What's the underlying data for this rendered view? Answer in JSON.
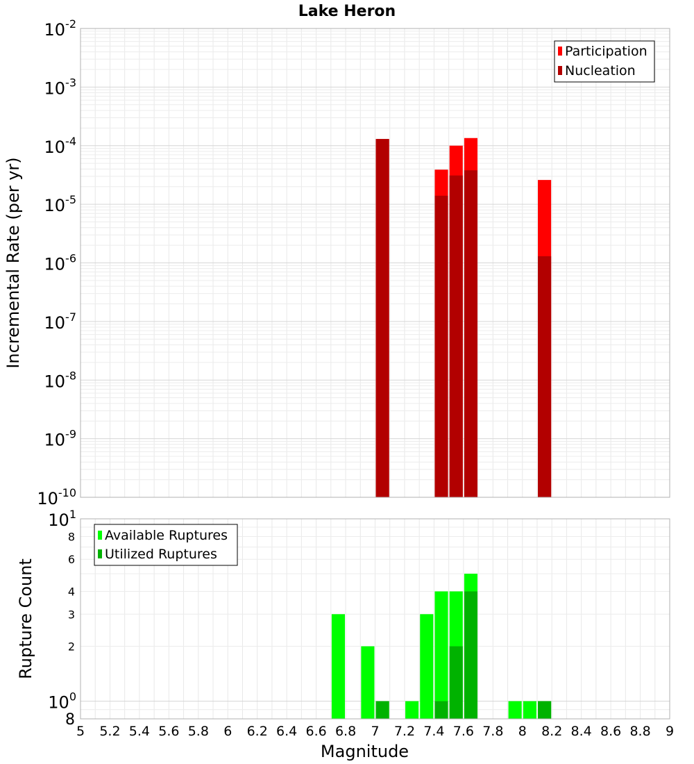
{
  "chart_data": [
    {
      "type": "bar",
      "title": "Lake Heron",
      "xlabel": "",
      "ylabel": "Incremental Rate (per yr)",
      "yscale": "log",
      "xlim": [
        5,
        9
      ],
      "ylim": [
        1e-10,
        0.01
      ],
      "yticks": [
        {
          "base": "10",
          "exp": "-10"
        },
        {
          "base": "10",
          "exp": "-9"
        },
        {
          "base": "10",
          "exp": "-8"
        },
        {
          "base": "10",
          "exp": "-7"
        },
        {
          "base": "10",
          "exp": "-6"
        },
        {
          "base": "10",
          "exp": "-5"
        },
        {
          "base": "10",
          "exp": "-4"
        },
        {
          "base": "10",
          "exp": "-3"
        },
        {
          "base": "10",
          "exp": "-2"
        }
      ],
      "grid": true,
      "legend_position": "top-right",
      "series": [
        {
          "name": "Participation",
          "color": "#ff0000",
          "x": [
            7.05,
            7.45,
            7.55,
            7.65,
            8.15
          ],
          "values": [
            0.00013,
            3.9e-05,
            0.0001,
            0.000135,
            2.6e-05
          ]
        },
        {
          "name": "Nucleation",
          "color": "#b20000",
          "x": [
            7.05,
            7.45,
            7.55,
            7.65,
            8.15
          ],
          "values": [
            0.00013,
            1.4e-05,
            3.1e-05,
            3.8e-05,
            1.3e-06
          ]
        }
      ]
    },
    {
      "type": "bar",
      "xlabel": "Magnitude",
      "ylabel": "Rupture Count",
      "yscale": "log",
      "xlim": [
        5,
        9
      ],
      "ylim": [
        0.8,
        10
      ],
      "xticks": [
        "5",
        "5.2",
        "5.4",
        "5.6",
        "5.8",
        "6",
        "6.2",
        "6.4",
        "6.6",
        "6.8",
        "7",
        "7.2",
        "7.4",
        "7.6",
        "7.8",
        "8",
        "8.2",
        "8.4",
        "8.6",
        "8.8",
        "9"
      ],
      "yticks": [
        {
          "value": 1,
          "label": "10",
          "exp": "0",
          "major": true
        },
        {
          "value": 2,
          "label": "2"
        },
        {
          "value": 3,
          "label": "3"
        },
        {
          "value": 4,
          "label": "4"
        },
        {
          "value": 6,
          "label": "6"
        },
        {
          "value": 8,
          "label": "8"
        },
        {
          "value": 10,
          "label": "10",
          "exp": "1",
          "major": true
        }
      ],
      "ybottom_label": "8",
      "grid": true,
      "legend_position": "top-left",
      "series": [
        {
          "name": "Available Ruptures",
          "color": "#00ff00",
          "x": [
            6.75,
            6.95,
            7.05,
            7.25,
            7.35,
            7.45,
            7.55,
            7.65,
            7.95,
            8.05,
            8.15
          ],
          "values": [
            3,
            2,
            1,
            1,
            3,
            4,
            4,
            5,
            1,
            1,
            1
          ]
        },
        {
          "name": "Utilized Ruptures",
          "color": "#00b200",
          "x": [
            7.05,
            7.45,
            7.55,
            7.65,
            8.15
          ],
          "values": [
            1,
            1,
            2,
            4,
            1
          ]
        }
      ]
    }
  ]
}
